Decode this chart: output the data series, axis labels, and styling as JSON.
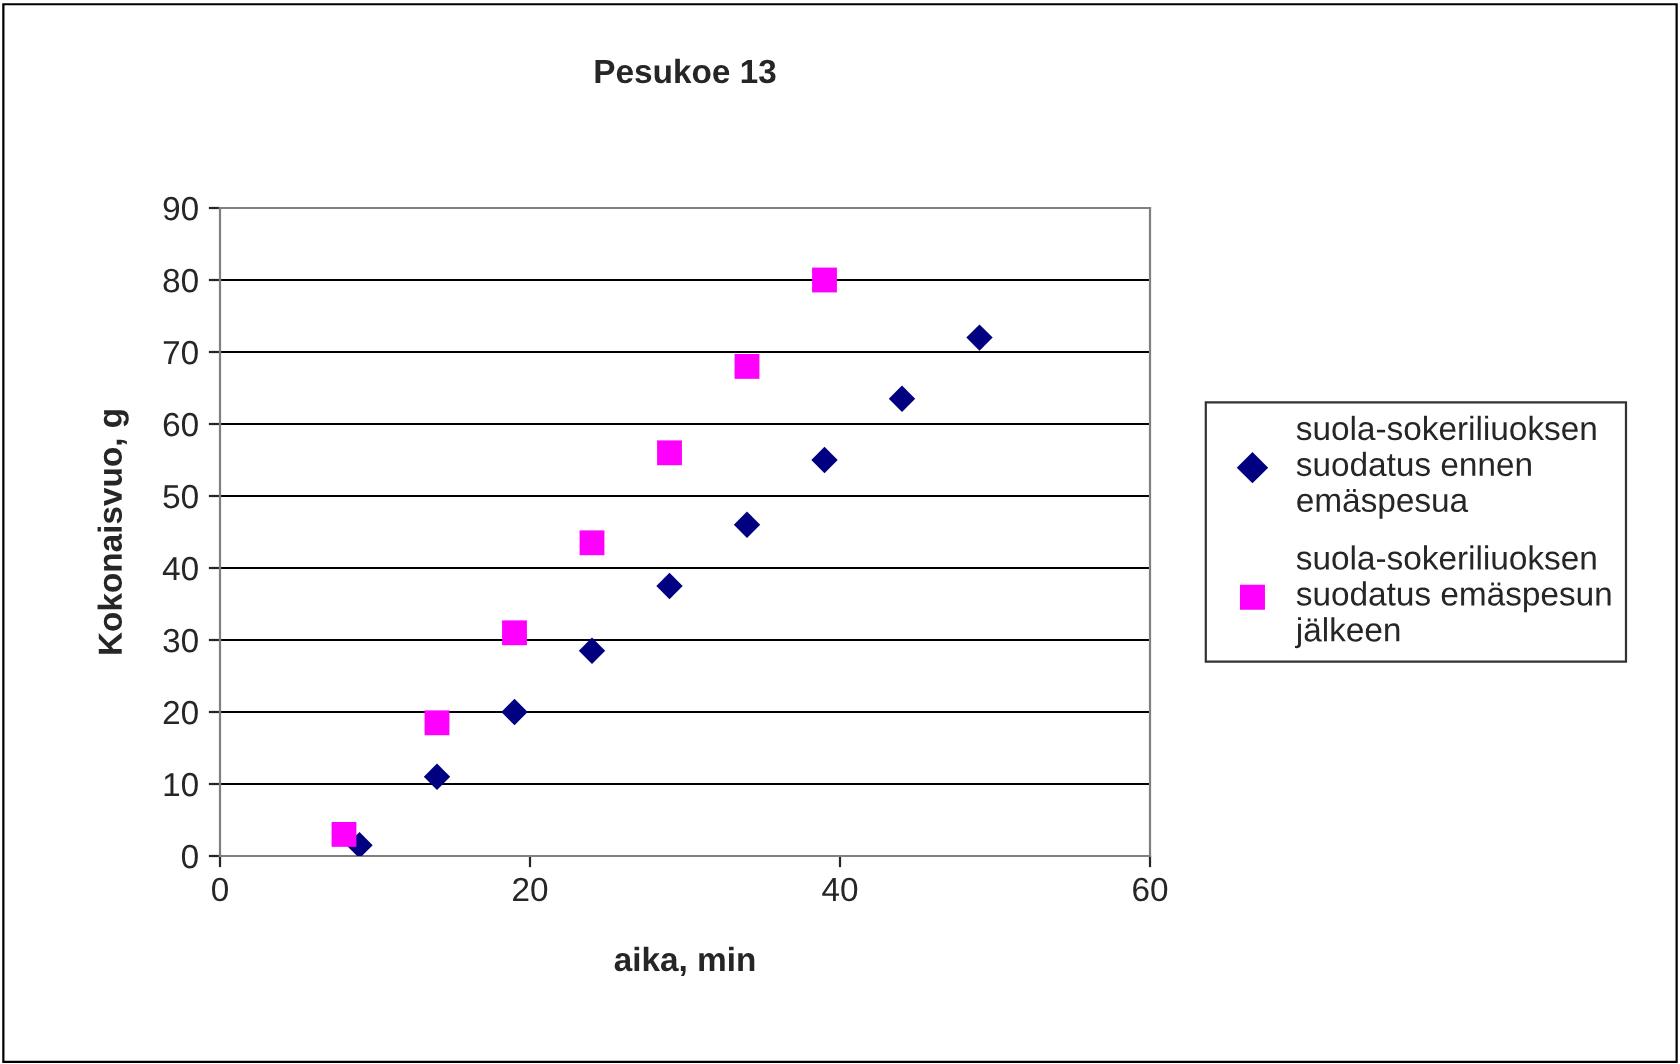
{
  "chart_data": {
    "type": "scatter",
    "title": "Pesukoe 13",
    "xlabel": "aika, min",
    "ylabel": "Kokonaisvuo, g",
    "xlim": [
      0,
      60
    ],
    "xticks": [
      0,
      20,
      40,
      60
    ],
    "ylim": [
      0,
      90
    ],
    "yticks": [
      0,
      10,
      20,
      30,
      40,
      50,
      60,
      70,
      80,
      90
    ],
    "grid": "y",
    "legend": "right",
    "series": [
      {
        "name": "suola-sokeriliuoksen suodatus ennen emäspesua",
        "color": "#000080",
        "marker": "diamond",
        "x": [
          9,
          14,
          19,
          24,
          29,
          34,
          39,
          44,
          49
        ],
        "values": [
          1.5,
          11,
          20,
          28.5,
          37.5,
          46,
          55,
          63.5,
          72
        ]
      },
      {
        "name": "suola-sokeriliuoksen suodatus emäspesun jälkeen",
        "color": "#ff00ff",
        "marker": "square",
        "x": [
          8,
          14,
          19,
          24,
          29,
          34,
          39
        ],
        "values": [
          3,
          18.5,
          31,
          43.5,
          56,
          68,
          80
        ]
      }
    ]
  }
}
